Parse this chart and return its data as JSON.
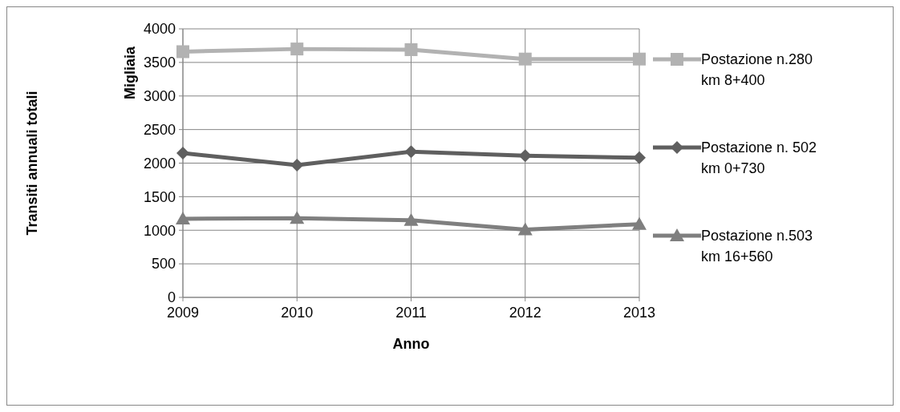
{
  "chart_data": {
    "type": "line",
    "xlabel": "Anno",
    "ylabel": "Migliaia",
    "annotations": [
      "Transiti annuali totali"
    ],
    "categories": [
      "2009",
      "2010",
      "2011",
      "2012",
      "2013"
    ],
    "series": [
      {
        "name": "Postazione n.280\nkm 8+400",
        "color": "#b2b2b2",
        "marker": "square",
        "values": [
          3660,
          3700,
          3690,
          3550,
          3550
        ]
      },
      {
        "name": "Postazione n. 502\nkm 0+730",
        "color": "#5f5f5f",
        "marker": "diamond",
        "values": [
          2150,
          1970,
          2170,
          2110,
          2080
        ]
      },
      {
        "name": "Postazione n.503\nkm 16+560",
        "color": "#7f7f7f",
        "marker": "triangle",
        "values": [
          1170,
          1180,
          1150,
          1010,
          1090
        ]
      }
    ],
    "ylim": [
      0,
      4000
    ],
    "yticks": [
      0,
      500,
      1000,
      1500,
      2000,
      2500,
      3000,
      3500,
      4000
    ],
    "grid": true,
    "legend": "right"
  }
}
